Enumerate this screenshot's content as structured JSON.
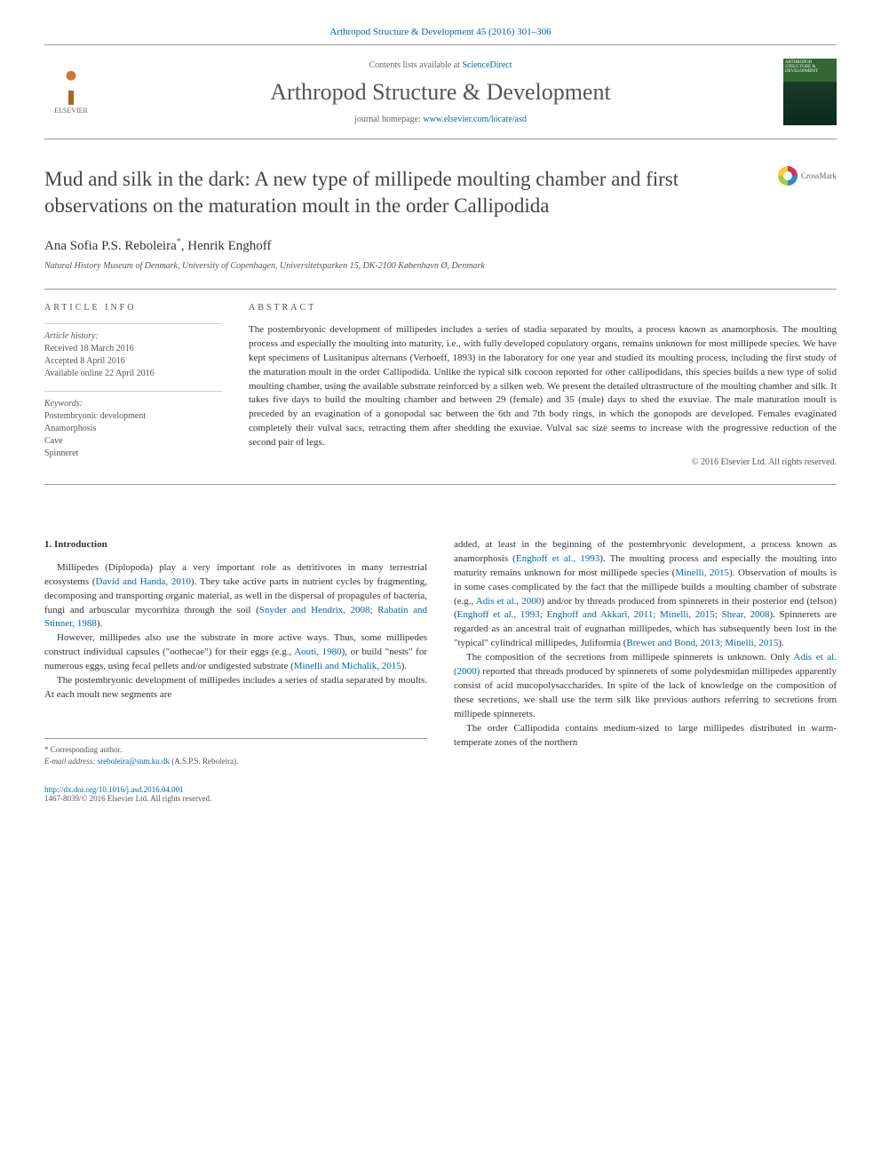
{
  "citation": "Arthropod Structure & Development 45 (2016) 301–306",
  "contents_available": "Contents lists available at ",
  "sciencedirect": "ScienceDirect",
  "journal_name": "Arthropod Structure & Development",
  "homepage_label": "journal homepage: ",
  "homepage_url": "www.elsevier.com/locate/asd",
  "elsevier_label": "ELSEVIER",
  "cover_text": "ARTHROPOD STRUCTURE & DEVELOPMENT",
  "title": "Mud and silk in the dark: A new type of millipede moulting chamber and first observations on the maturation moult in the order Callipodida",
  "crossmark_label": "CrossMark",
  "authors_html": "Ana Sofia P.S. Reboleira",
  "author_sup": "*",
  "author2": ", Henrik Enghoff",
  "affiliation": "Natural History Museum of Denmark, University of Copenhagen, Universitetsparken 15, DK-2100 København Ø, Denmark",
  "article_info_label": "ARTICLE INFO",
  "abstract_label": "ABSTRACT",
  "history_heading": "Article history:",
  "history": {
    "received": "Received 18 March 2016",
    "accepted": "Accepted 8 April 2016",
    "online": "Available online 22 April 2016"
  },
  "keywords_heading": "Keywords:",
  "keywords": [
    "Postembryonic development",
    "Anamorphosis",
    "Cave",
    "Spinneret"
  ],
  "abstract_text": "The postembryonic development of millipedes includes a series of stadia separated by moults, a process known as anamorphosis. The moulting process and especially the moulting into maturity, i.e., with fully developed copulatory organs, remains unknown for most millipede species. We have kept specimens of Lusitanipus alternans (Verhoeff, 1893) in the laboratory for one year and studied its moulting process, including the first study of the maturation moult in the order Callipodida. Unlike the typical silk cocoon reported for other callipodidans, this species builds a new type of solid moulting chamber, using the available substrate reinforced by a silken web. We present the detailed ultrastructure of the moulting chamber and silk. It takes five days to build the moulting chamber and between 29 (female) and 35 (male) days to shed the exuviae. The male maturation moult is preceded by an evagination of a gonopodal sac between the 6th and 7th body rings, in which the gonopods are developed. Females evaginated completely their vulval sacs, retracting them after shedding the exuviae. Vulval sac size seems to increase with the progressive reduction of the second pair of legs.",
  "abstract_copyright": "© 2016 Elsevier Ltd. All rights reserved.",
  "intro_heading": "1. Introduction",
  "col1": {
    "p1a": "Millipedes (Diplopoda) play a very important role as detritivores in many terrestrial ecosystems (",
    "p1r1": "David and Handa, 2010",
    "p1b": "). They take active parts in nutrient cycles by fragmenting, decomposing and transporting organic material, as well in the dispersal of propagules of bacteria, fungi and arbuscular mycorrhiza through the soil (",
    "p1r2": "Snyder and Hendrix, 2008; Rabatin and Stinner, 1988",
    "p1c": ").",
    "p2a": "However, millipedes also use the substrate in more active ways. Thus, some millipedes construct individual capsules (\"oothecae\") for their eggs (e.g., ",
    "p2r1": "Aouti, 1980",
    "p2b": "), or build \"nests\" for numerous eggs, using fecal pellets and/or undigested substrate (",
    "p2r2": "Minelli and Michalik, 2015",
    "p2c": ").",
    "p3": "The postembryonic development of millipedes includes a series of stadia separated by moults. At each moult new segments are"
  },
  "col2": {
    "p1a": "added, at least in the beginning of the postembryonic development, a process known as anamorphosis (",
    "p1r1": "Enghoff et al., 1993",
    "p1b": "). The moulting process and especially the moulting into maturity remains unknown for most millipede species (",
    "p1r2": "Minelli, 2015",
    "p1c": "). Observation of moults is in some cases complicated by the fact that the millipede builds a moulting chamber of substrate (e.g., ",
    "p1r3": "Adis et al., 2000",
    "p1d": ") and/or by threads produced from spinnerets in their posterior end (telson) (",
    "p1r4": "Enghoff et al., 1993; Enghoff and Akkari, 2011; Minelli, 2015; Shear, 2008",
    "p1e": "). Spinnerets are regarded as an ancestral trait of eugnathan millipedes, which has subsequently been lost in the \"typical\" cylindrical millipedes, Juliformia (",
    "p1r5": "Brewer and Bond, 2013; Minelli, 2015",
    "p1f": ").",
    "p2a": "The composition of the secretions from millipede spinnerets is unknown. Only ",
    "p2r1": "Adis et al. (2000)",
    "p2b": " reported that threads produced by spinnerets of some polydesmidan millipedes apparently consist of acid mucopolysaccharides. In spite of the lack of knowledge on the composition of these secretions, we shall use the term silk like previous authors referring to secretions from millipede spinnerets.",
    "p3": "The order Callipodida contains medium-sized to large millipedes distributed in warm-temperate zones of the northern"
  },
  "corr": {
    "label": "* Corresponding author.",
    "email_label": "E-mail address: ",
    "email": "sreboleira@snm.ku.dk",
    "name": " (A.S.P.S. Reboleira)."
  },
  "footer": {
    "doi": "http://dx.doi.org/10.1016/j.asd.2016.04.001",
    "issn_line": "1467-8039/© 2016 Elsevier Ltd. All rights reserved."
  }
}
